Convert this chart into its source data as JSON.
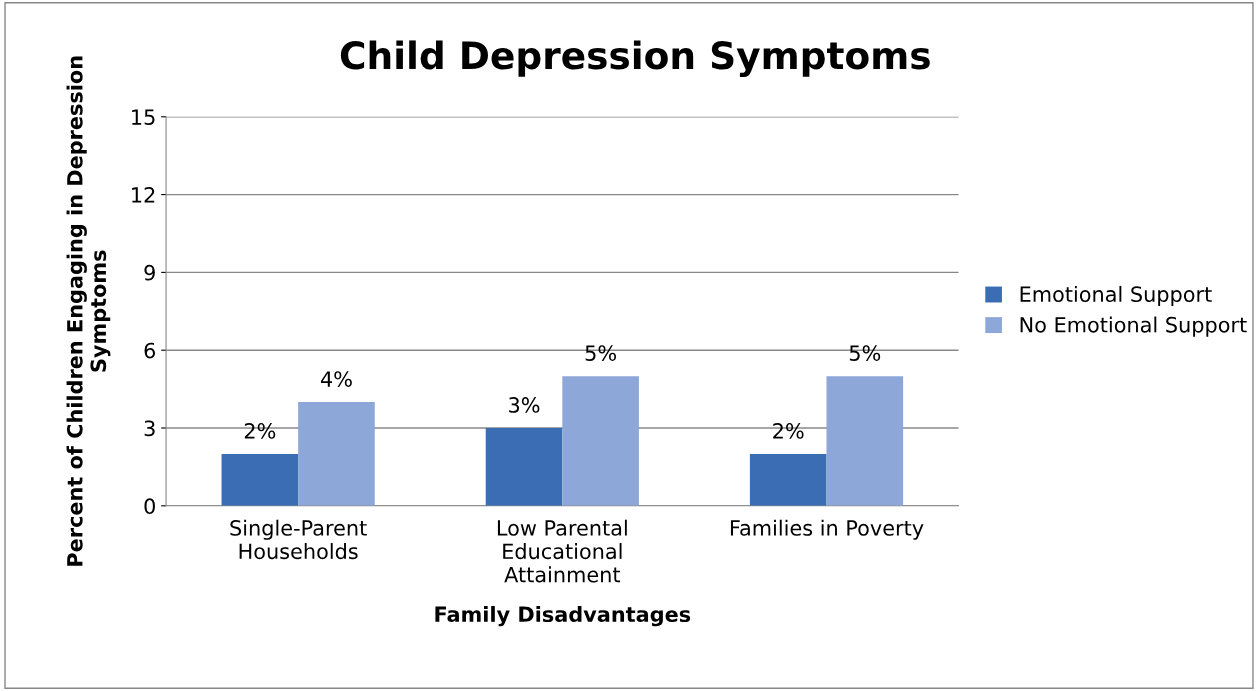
{
  "chart_data": {
    "type": "bar",
    "title": "Child Depression Symptoms",
    "xlabel": "Family Disadvantages",
    "ylabel": "Percent of Children Engaging in Depression\nSymptoms",
    "categories": [
      "Single-Parent\nHouseholds",
      "Low Parental\nEducational\nAttainment",
      "Families in Poverty"
    ],
    "series": [
      {
        "name": "Emotional Support",
        "color": "#3a6db3",
        "values": [
          2,
          3,
          2
        ],
        "value_labels": [
          "2%",
          "3%",
          "2%"
        ]
      },
      {
        "name": "No Emotional Support",
        "color": "#8ca7d8",
        "values": [
          4,
          5,
          5
        ],
        "value_labels": [
          "4%",
          "5%",
          "5%"
        ]
      }
    ],
    "ylim": [
      0,
      15
    ],
    "yticks": [
      0,
      3,
      6,
      9,
      12,
      15
    ],
    "grid": "y",
    "legend": "right"
  }
}
